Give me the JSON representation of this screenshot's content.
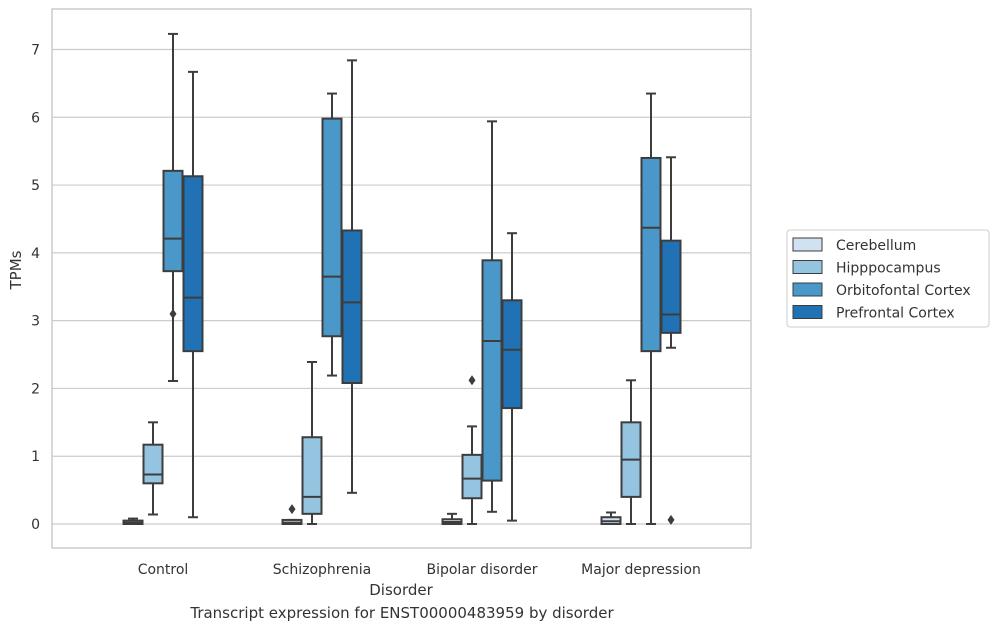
{
  "caption": "Transcript expression for ENST00000483959 by disorder",
  "chart_data": {
    "type": "box",
    "xlabel": "Disorder",
    "ylabel": "TPMs",
    "ylim": [
      -0.35,
      7.6
    ],
    "yticks": [
      0,
      1,
      2,
      3,
      4,
      5,
      6,
      7
    ],
    "grid": "horizontal",
    "legend_position": "right (outside)",
    "categories": [
      "Control",
      "Schizophrenia",
      "Bipolar disorder",
      "Major depression"
    ],
    "series": [
      {
        "name": "Cerebellum",
        "color": "#d0e1f2",
        "boxes": [
          {
            "whisker_low": 0.0,
            "q1": 0.0,
            "median": 0.02,
            "q3": 0.05,
            "whisker_high": 0.08,
            "outliers": []
          },
          {
            "whisker_low": 0.0,
            "q1": 0.0,
            "median": 0.02,
            "q3": 0.06,
            "whisker_high": 0.06,
            "outliers": [
              0.22
            ]
          },
          {
            "whisker_low": 0.0,
            "q1": 0.0,
            "median": 0.03,
            "q3": 0.07,
            "whisker_high": 0.15,
            "outliers": []
          },
          {
            "whisker_low": 0.0,
            "q1": 0.0,
            "median": 0.04,
            "q3": 0.1,
            "whisker_high": 0.17,
            "outliers": []
          }
        ]
      },
      {
        "name": "Hipppocampus",
        "color": "#94c4df",
        "boxes": [
          {
            "whisker_low": 0.14,
            "q1": 0.6,
            "median": 0.73,
            "q3": 1.17,
            "whisker_high": 1.5,
            "outliers": []
          },
          {
            "whisker_low": 0.0,
            "q1": 0.15,
            "median": 0.4,
            "q3": 1.28,
            "whisker_high": 2.39,
            "outliers": []
          },
          {
            "whisker_low": 0.0,
            "q1": 0.38,
            "median": 0.67,
            "q3": 1.02,
            "whisker_high": 1.44,
            "outliers": [
              2.12
            ]
          },
          {
            "whisker_low": 0.0,
            "q1": 0.4,
            "median": 0.95,
            "q3": 1.5,
            "whisker_high": 2.12,
            "outliers": []
          }
        ]
      },
      {
        "name": "Orbitofontal Cortex",
        "color": "#4a98c9",
        "boxes": [
          {
            "whisker_low": 2.11,
            "q1": 3.73,
            "median": 4.21,
            "q3": 5.21,
            "whisker_high": 7.23,
            "outliers": [
              3.1
            ]
          },
          {
            "whisker_low": 2.19,
            "q1": 2.77,
            "median": 3.65,
            "q3": 5.98,
            "whisker_high": 6.35,
            "outliers": []
          },
          {
            "whisker_low": 0.18,
            "q1": 0.64,
            "median": 2.7,
            "q3": 3.89,
            "whisker_high": 5.94,
            "outliers": []
          },
          {
            "whisker_low": 0.0,
            "q1": 2.55,
            "median": 4.37,
            "q3": 5.4,
            "whisker_high": 6.35,
            "outliers": []
          }
        ]
      },
      {
        "name": "Prefrontal Cortex",
        "color": "#2171b5",
        "boxes": [
          {
            "whisker_low": 0.1,
            "q1": 2.55,
            "median": 3.34,
            "q3": 5.13,
            "whisker_high": 6.67,
            "outliers": []
          },
          {
            "whisker_low": 0.46,
            "q1": 2.08,
            "median": 3.27,
            "q3": 4.33,
            "whisker_high": 6.84,
            "outliers": []
          },
          {
            "whisker_low": 0.05,
            "q1": 1.71,
            "median": 2.57,
            "q3": 3.3,
            "whisker_high": 4.29,
            "outliers": []
          },
          {
            "whisker_low": 2.6,
            "q1": 2.82,
            "median": 3.09,
            "q3": 4.18,
            "whisker_high": 5.41,
            "outliers": [
              0.06
            ]
          }
        ]
      }
    ]
  }
}
